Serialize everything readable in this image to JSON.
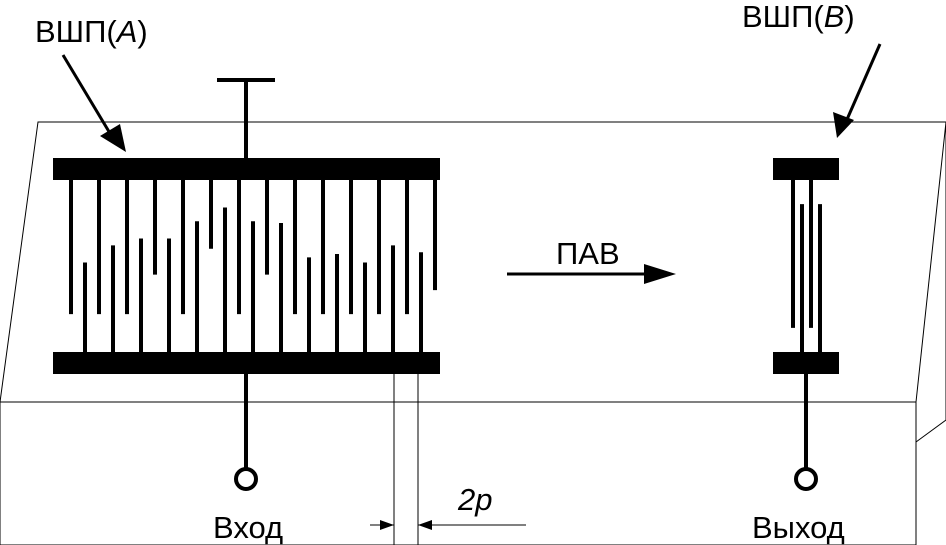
{
  "labels": {
    "idt_a": {
      "prefix": "ВШП(",
      "letter": "A",
      "suffix": ")"
    },
    "idt_b": {
      "prefix": "ВШП(",
      "letter": "B",
      "suffix": ")"
    },
    "wave": "ПАВ",
    "input": "Вход",
    "output": "Выход",
    "period": "2p"
  },
  "colors": {
    "ink": "#000000",
    "substrate_edge": "#000000",
    "background": "#ffffff"
  },
  "idt_a_fingers": [
    {
      "from": "top",
      "length_fraction": 0.78
    },
    {
      "from": "bottom",
      "length_fraction": 0.52
    },
    {
      "from": "top",
      "length_fraction": 0.78
    },
    {
      "from": "bottom",
      "length_fraction": 0.62
    },
    {
      "from": "top",
      "length_fraction": 0.78
    },
    {
      "from": "bottom",
      "length_fraction": 0.66
    },
    {
      "from": "top",
      "length_fraction": 0.55
    },
    {
      "from": "bottom",
      "length_fraction": 0.66
    },
    {
      "from": "top",
      "length_fraction": 0.78
    },
    {
      "from": "bottom",
      "length_fraction": 0.76
    },
    {
      "from": "top",
      "length_fraction": 0.4
    },
    {
      "from": "bottom",
      "length_fraction": 0.84
    },
    {
      "from": "top",
      "length_fraction": 0.78
    },
    {
      "from": "bottom",
      "length_fraction": 0.76
    },
    {
      "from": "top",
      "length_fraction": 0.55
    },
    {
      "from": "bottom",
      "length_fraction": 0.75
    },
    {
      "from": "top",
      "length_fraction": 0.78
    },
    {
      "from": "bottom",
      "length_fraction": 0.55
    },
    {
      "from": "top",
      "length_fraction": 0.78
    },
    {
      "from": "bottom",
      "length_fraction": 0.57
    },
    {
      "from": "top",
      "length_fraction": 0.78
    },
    {
      "from": "bottom",
      "length_fraction": 0.52
    },
    {
      "from": "top",
      "length_fraction": 0.78
    },
    {
      "from": "bottom",
      "length_fraction": 0.62
    },
    {
      "from": "top",
      "length_fraction": 0.78
    },
    {
      "from": "bottom",
      "length_fraction": 0.58
    },
    {
      "from": "top",
      "length_fraction": 0.64
    }
  ],
  "idt_b_fingers": [
    {
      "from": "top",
      "length_fraction": 0.86
    },
    {
      "from": "bottom",
      "length_fraction": 0.86
    },
    {
      "from": "top",
      "length_fraction": 0.86
    },
    {
      "from": "bottom",
      "length_fraction": 0.86
    }
  ]
}
